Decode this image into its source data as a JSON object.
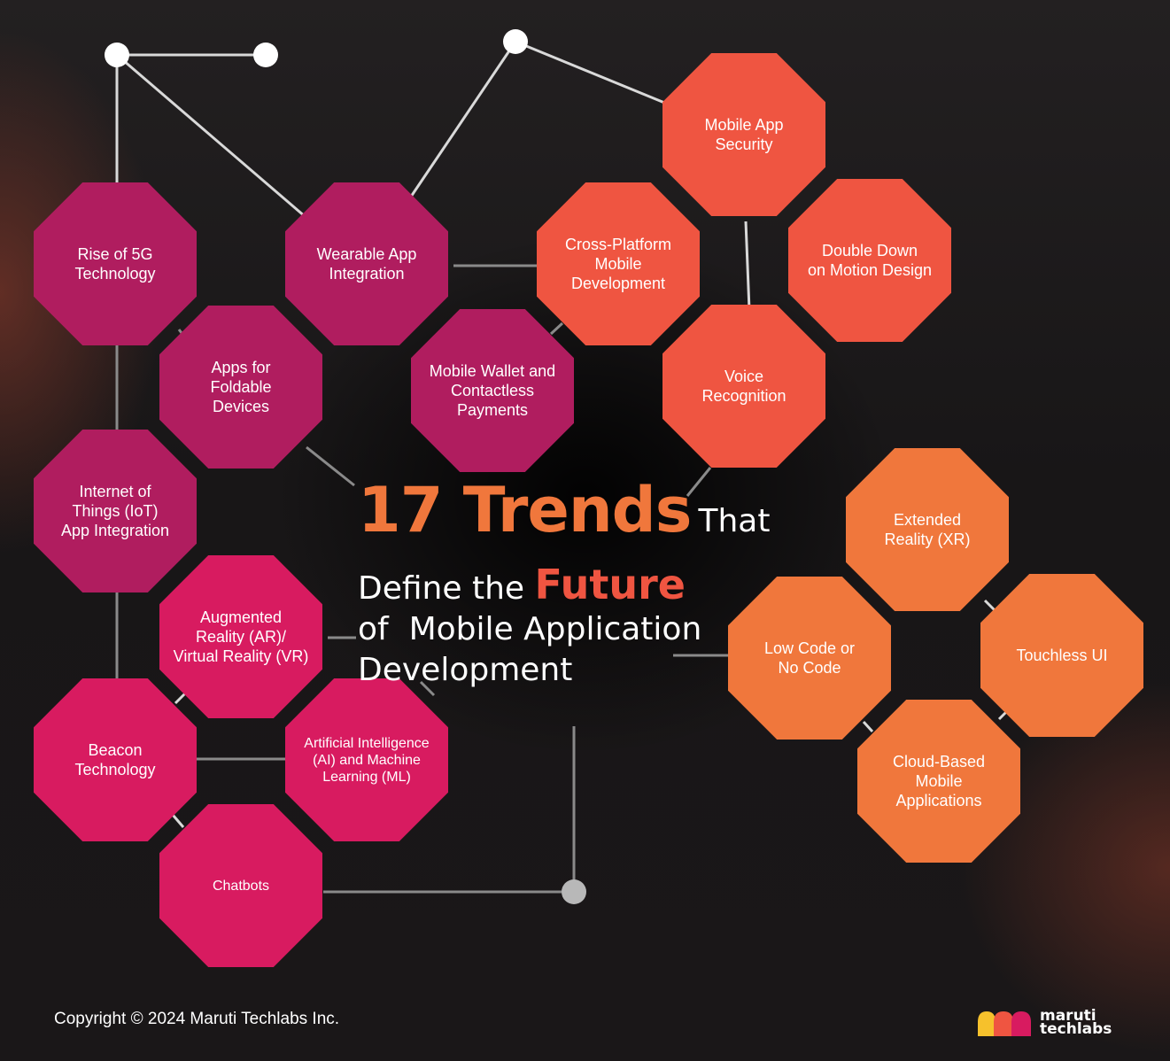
{
  "title": {
    "number_word": "17 Trends",
    "that": "That",
    "line2_prefix": "Define the",
    "future": "Future",
    "line3": "of  Mobile Application",
    "line4": "Development"
  },
  "trends": {
    "rise_5g": "Rise of 5G\nTechnology",
    "wearable": "Wearable App\nIntegration",
    "foldable": "Apps for\nFoldable\nDevices",
    "wallet": "Mobile Wallet and\nContactless\nPayments",
    "iot": "Internet of\nThings (IoT)\nApp Integration",
    "ar_vr": "Augmented\nReality (AR)/\nVirtual Reality (VR)",
    "beacon": "Beacon\nTechnology",
    "ai_ml": "Artificial Intelligence\n(AI) and Machine\nLearning (ML)",
    "chatbots": "Chatbots",
    "security": "Mobile App\nSecurity",
    "cross_platform": "Cross-Platform\nMobile\nDevelopment",
    "motion": "Double Down\non Motion Design",
    "voice": "Voice\nRecognition",
    "xr": "Extended\nReality (XR)",
    "low_code": "Low Code or\nNo Code",
    "touchless": "Touchless UI",
    "cloud": "Cloud-Based\nMobile\nApplications"
  },
  "footer": {
    "copyright": "Copyright © 2024 Maruti Techlabs Inc.",
    "logo_line1": "maruti",
    "logo_line2": "techlabs"
  },
  "colors": {
    "magenta": "#b01d5f",
    "pink": "#d81b60",
    "orange_red": "#ef5541",
    "orange": "#f0773c"
  }
}
